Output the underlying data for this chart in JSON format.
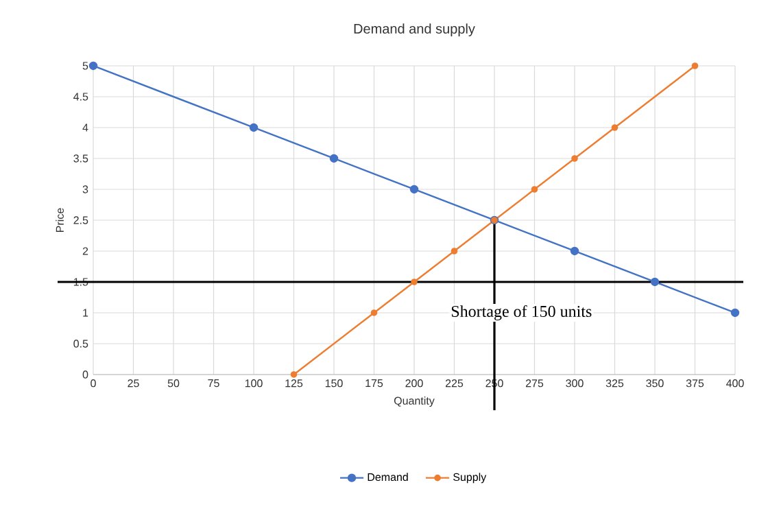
{
  "chart_data": {
    "type": "line",
    "title": "Demand and supply",
    "xlabel": "Quantity",
    "ylabel": "Price",
    "xlim": [
      0,
      400
    ],
    "xticks": [
      0,
      25,
      50,
      75,
      100,
      125,
      150,
      175,
      200,
      225,
      250,
      275,
      300,
      325,
      350,
      375,
      400
    ],
    "ylim": [
      0,
      5
    ],
    "yticks": [
      0,
      0.5,
      1,
      1.5,
      2,
      2.5,
      3,
      3.5,
      4,
      4.5,
      5
    ],
    "grid": true,
    "legend": "bottom",
    "marker": "circle",
    "line_style": "solid",
    "series": [
      {
        "name": "Demand",
        "color": "#4472c4",
        "x": [
          0,
          100,
          150,
          200,
          250,
          300,
          350,
          400
        ],
        "values": [
          5,
          4,
          3.5,
          3,
          2.5,
          2,
          1.5,
          1
        ]
      },
      {
        "name": "Supply",
        "color": "#ed7d31",
        "x": [
          125,
          175,
          200,
          225,
          250,
          275,
          300,
          325,
          375
        ],
        "values": [
          0,
          1,
          1.5,
          2,
          2.5,
          3,
          3.5,
          4,
          5
        ]
      }
    ],
    "ref_lines": [
      {
        "axis": "y",
        "value": 1.5,
        "color": "#000000"
      },
      {
        "axis": "x",
        "value": 250,
        "color": "#000000"
      }
    ],
    "annotations": [
      "Shortage of 150 units"
    ]
  }
}
